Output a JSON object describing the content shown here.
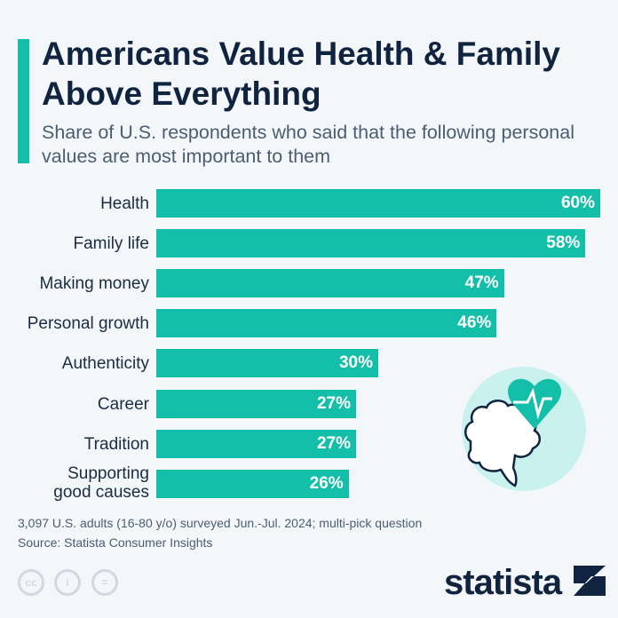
{
  "header": {
    "title": "Americans Value Health & Family Above Everything",
    "subtitle": "Share of U.S. respondents who said that the following personal values are most important to them"
  },
  "chart_data": {
    "type": "bar",
    "orientation": "horizontal",
    "categories": [
      "Health",
      "Family life",
      "Making money",
      "Personal growth",
      "Authenticity",
      "Career",
      "Tradition",
      "Supporting good causes"
    ],
    "values": [
      60,
      58,
      47,
      46,
      30,
      27,
      27,
      26
    ],
    "value_labels": [
      "60%",
      "58%",
      "47%",
      "46%",
      "30%",
      "27%",
      "27%",
      "26%"
    ],
    "unit": "%",
    "xlim": [
      0,
      60
    ],
    "grid": false,
    "bar_color": "#14bfaa"
  },
  "footer": {
    "note": "3,097 U.S. adults (16-80 y/o) surveyed Jun.-Jul. 2024; multi-pick question",
    "source": "Source: Statista Consumer Insights",
    "logo": "statista",
    "license_icons": [
      "cc-icon",
      "attribution-icon",
      "no-derivatives-icon"
    ]
  },
  "illustration": {
    "icon": "brain-heart-icon"
  },
  "colors": {
    "accent": "#14bfaa",
    "title": "#10233f"
  }
}
